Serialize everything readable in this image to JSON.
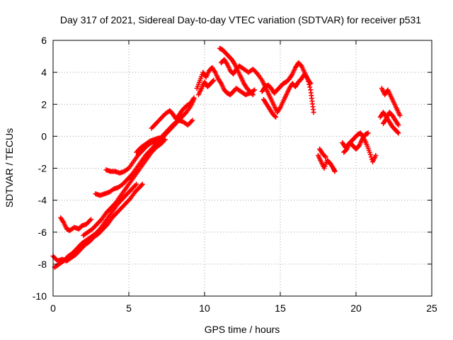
{
  "chart_data": {
    "type": "scatter",
    "title": "Day 317 of 2021, Sidereal Day-to-day VTEC variation (SDTVAR) for receiver p531",
    "xlabel": "GPS time / hours",
    "ylabel": "SDTVAR / TECUs",
    "xlim": [
      0,
      25
    ],
    "ylim": [
      -10,
      6
    ],
    "xticks": [
      "0",
      "5",
      "10",
      "15",
      "20",
      "25"
    ],
    "yticks": [
      "-10",
      "-8",
      "-6",
      "-4",
      "-2",
      "0",
      "2",
      "4",
      "6"
    ],
    "grid": true,
    "marker": "+",
    "color": "#ff0000",
    "series": [
      {
        "points": [
          [
            0.0,
            -7.5
          ],
          [
            0.3,
            -7.8
          ],
          [
            0.6,
            -7.7
          ],
          [
            0.9,
            -7.8
          ],
          [
            1.2,
            -7.6
          ],
          [
            1.5,
            -7.4
          ],
          [
            1.8,
            -7.1
          ],
          [
            2.1,
            -6.8
          ],
          [
            2.4,
            -6.6
          ],
          [
            2.7,
            -6.3
          ],
          [
            3.0,
            -6.1
          ],
          [
            3.3,
            -5.8
          ],
          [
            3.6,
            -5.5
          ],
          [
            3.9,
            -5.1
          ],
          [
            4.2,
            -4.8
          ],
          [
            4.5,
            -4.5
          ],
          [
            4.8,
            -4.2
          ],
          [
            5.1,
            -3.9
          ],
          [
            5.4,
            -3.5
          ],
          [
            5.7,
            -3.2
          ],
          [
            5.9,
            -3.0
          ]
        ]
      },
      {
        "points": [
          [
            0.1,
            -8.2
          ],
          [
            0.4,
            -8.0
          ],
          [
            0.7,
            -7.8
          ],
          [
            1.0,
            -7.5
          ],
          [
            1.3,
            -7.3
          ],
          [
            1.6,
            -7.0
          ],
          [
            1.9,
            -6.7
          ],
          [
            2.2,
            -6.5
          ],
          [
            2.5,
            -6.3
          ],
          [
            2.8,
            -6.1
          ],
          [
            3.1,
            -5.8
          ],
          [
            3.4,
            -5.4
          ],
          [
            3.7,
            -5.0
          ],
          [
            4.0,
            -4.6
          ],
          [
            4.3,
            -4.2
          ],
          [
            4.6,
            -3.9
          ],
          [
            4.9,
            -3.6
          ],
          [
            5.2,
            -3.3
          ],
          [
            5.5,
            -3.0
          ]
        ]
      },
      {
        "points": [
          [
            0.5,
            -5.1
          ],
          [
            0.7,
            -5.4
          ],
          [
            0.9,
            -5.8
          ],
          [
            1.1,
            -5.9
          ],
          [
            1.4,
            -5.7
          ],
          [
            1.7,
            -5.8
          ],
          [
            1.9,
            -5.6
          ],
          [
            2.2,
            -5.5
          ],
          [
            2.5,
            -5.2
          ]
        ]
      },
      {
        "points": [
          [
            2.0,
            -6.2
          ],
          [
            2.3,
            -6.0
          ],
          [
            2.6,
            -5.8
          ],
          [
            2.9,
            -5.5
          ],
          [
            3.2,
            -5.2
          ],
          [
            3.5,
            -4.8
          ],
          [
            3.8,
            -4.5
          ],
          [
            4.1,
            -4.2
          ],
          [
            4.4,
            -3.8
          ],
          [
            4.7,
            -3.4
          ],
          [
            5.0,
            -3.0
          ],
          [
            5.3,
            -2.6
          ],
          [
            5.6,
            -2.2
          ],
          [
            5.9,
            -1.8
          ],
          [
            6.2,
            -1.4
          ],
          [
            6.5,
            -1.0
          ],
          [
            6.8,
            -0.7
          ],
          [
            7.1,
            -0.5
          ],
          [
            7.4,
            -0.2
          ]
        ]
      },
      {
        "points": [
          [
            2.8,
            -3.6
          ],
          [
            3.1,
            -3.7
          ],
          [
            3.4,
            -3.6
          ],
          [
            3.7,
            -3.5
          ],
          [
            4.0,
            -3.3
          ],
          [
            4.3,
            -3.2
          ],
          [
            4.6,
            -3.0
          ],
          [
            4.9,
            -2.7
          ],
          [
            5.2,
            -2.4
          ],
          [
            5.5,
            -2.0
          ],
          [
            5.8,
            -1.6
          ],
          [
            6.1,
            -1.2
          ],
          [
            6.4,
            -0.9
          ],
          [
            6.7,
            -0.6
          ],
          [
            7.0,
            -0.3
          ],
          [
            7.3,
            0.0
          ],
          [
            7.6,
            0.3
          ],
          [
            7.9,
            0.6
          ],
          [
            8.2,
            0.9
          ],
          [
            8.5,
            1.2
          ],
          [
            8.8,
            1.5
          ],
          [
            9.1,
            1.9
          ],
          [
            9.3,
            2.3
          ]
        ]
      },
      {
        "points": [
          [
            3.5,
            -2.1
          ],
          [
            3.8,
            -2.2
          ],
          [
            4.1,
            -2.2
          ],
          [
            4.4,
            -2.3
          ],
          [
            4.7,
            -2.2
          ],
          [
            5.0,
            -2.0
          ],
          [
            5.3,
            -1.6
          ],
          [
            5.6,
            -1.2
          ],
          [
            5.9,
            -0.9
          ],
          [
            6.2,
            -0.6
          ],
          [
            6.5,
            -0.4
          ],
          [
            6.8,
            -0.3
          ],
          [
            7.1,
            -0.1
          ],
          [
            7.4,
            0.2
          ],
          [
            7.7,
            0.5
          ],
          [
            8.0,
            0.8
          ],
          [
            8.3,
            1.0
          ],
          [
            8.6,
            0.9
          ],
          [
            8.9,
            0.7
          ],
          [
            9.2,
            1.0
          ]
        ]
      },
      {
        "points": [
          [
            5.5,
            -1.0
          ],
          [
            5.8,
            -0.7
          ],
          [
            6.1,
            -0.5
          ],
          [
            6.4,
            -0.3
          ],
          [
            6.7,
            -0.2
          ],
          [
            7.0,
            -0.1
          ]
        ]
      },
      {
        "points": [
          [
            6.5,
            0.5
          ],
          [
            6.8,
            0.8
          ],
          [
            7.1,
            1.1
          ],
          [
            7.4,
            1.4
          ],
          [
            7.7,
            1.6
          ],
          [
            7.9,
            1.4
          ],
          [
            8.1,
            1.1
          ],
          [
            8.3,
            1.3
          ],
          [
            8.5,
            1.6
          ],
          [
            8.8,
            1.9
          ],
          [
            9.1,
            2.1
          ],
          [
            9.3,
            2.4
          ]
        ]
      },
      {
        "points": [
          [
            9.5,
            3.0
          ],
          [
            9.7,
            3.5
          ],
          [
            9.9,
            4.0
          ],
          [
            10.1,
            3.7
          ],
          [
            10.3,
            4.1
          ],
          [
            10.5,
            4.3
          ],
          [
            10.7,
            4.0
          ],
          [
            10.9,
            3.6
          ],
          [
            11.1,
            3.3
          ],
          [
            11.3,
            2.9
          ],
          [
            11.5,
            2.7
          ],
          [
            11.7,
            2.6
          ],
          [
            11.9,
            2.8
          ],
          [
            12.1,
            3.0
          ],
          [
            12.4,
            2.8
          ],
          [
            12.7,
            2.6
          ],
          [
            13.0,
            2.7
          ],
          [
            13.3,
            2.9
          ]
        ]
      },
      {
        "points": [
          [
            9.6,
            2.6
          ],
          [
            9.8,
            3.0
          ],
          [
            10.0,
            3.4
          ],
          [
            10.2,
            3.1
          ],
          [
            10.4,
            3.3
          ],
          [
            10.6,
            3.5
          ]
        ]
      },
      {
        "points": [
          [
            11.0,
            5.5
          ],
          [
            11.2,
            5.4
          ],
          [
            11.4,
            5.2
          ],
          [
            11.6,
            5.0
          ],
          [
            11.8,
            4.8
          ],
          [
            12.0,
            4.5
          ],
          [
            12.2,
            4.1
          ],
          [
            12.4,
            3.7
          ],
          [
            12.6,
            3.3
          ],
          [
            12.8,
            3.0
          ],
          [
            13.0,
            2.8
          ],
          [
            13.2,
            2.6
          ]
        ]
      },
      {
        "points": [
          [
            11.1,
            4.6
          ],
          [
            11.3,
            4.8
          ],
          [
            11.5,
            4.5
          ],
          [
            11.7,
            4.1
          ],
          [
            11.9,
            3.9
          ],
          [
            12.1,
            4.2
          ],
          [
            12.3,
            4.4
          ],
          [
            12.6,
            4.2
          ],
          [
            12.9,
            4.0
          ],
          [
            13.2,
            4.2
          ],
          [
            13.5,
            3.9
          ],
          [
            13.8,
            3.5
          ],
          [
            14.0,
            3.1
          ],
          [
            14.2,
            2.7
          ],
          [
            14.4,
            2.3
          ],
          [
            14.6,
            1.9
          ],
          [
            14.8,
            1.5
          ],
          [
            15.0,
            1.8
          ],
          [
            15.2,
            2.2
          ],
          [
            15.4,
            2.6
          ],
          [
            15.6,
            3.0
          ],
          [
            15.8,
            3.3
          ],
          [
            16.0,
            3.1
          ],
          [
            16.2,
            3.4
          ],
          [
            16.4,
            3.6
          ],
          [
            16.6,
            3.9
          ],
          [
            16.8,
            3.6
          ],
          [
            17.0,
            2.9
          ],
          [
            17.1,
            2.2
          ],
          [
            17.2,
            1.5
          ]
        ]
      },
      {
        "points": [
          [
            13.8,
            2.8
          ],
          [
            14.0,
            3.1
          ],
          [
            14.2,
            3.2
          ],
          [
            14.4,
            3.0
          ],
          [
            14.6,
            2.7
          ],
          [
            14.8,
            2.9
          ],
          [
            15.0,
            3.1
          ],
          [
            15.2,
            3.3
          ],
          [
            15.4,
            3.4
          ],
          [
            15.6,
            3.6
          ],
          [
            15.8,
            3.9
          ],
          [
            16.0,
            4.3
          ],
          [
            16.2,
            4.6
          ],
          [
            16.4,
            4.4
          ],
          [
            16.6,
            4.0
          ],
          [
            16.8,
            3.6
          ],
          [
            17.0,
            3.3
          ]
        ]
      },
      {
        "points": [
          [
            13.9,
            2.3
          ],
          [
            14.1,
            2.0
          ],
          [
            14.3,
            1.7
          ],
          [
            14.5,
            1.4
          ],
          [
            14.7,
            1.2
          ]
        ]
      },
      {
        "points": [
          [
            17.5,
            -1.2
          ],
          [
            17.7,
            -1.6
          ],
          [
            17.9,
            -2.0
          ],
          [
            18.1,
            -1.5
          ],
          [
            18.3,
            -1.7
          ],
          [
            18.5,
            -2.0
          ],
          [
            18.6,
            -2.2
          ]
        ]
      },
      {
        "points": [
          [
            17.6,
            -0.8
          ],
          [
            17.8,
            -1.1
          ],
          [
            18.0,
            -1.3
          ]
        ]
      },
      {
        "points": [
          [
            19.1,
            -0.4
          ],
          [
            19.3,
            -0.7
          ],
          [
            19.5,
            -0.5
          ],
          [
            19.7,
            -0.3
          ],
          [
            19.9,
            -0.1
          ],
          [
            20.1,
            0.1
          ],
          [
            20.3,
            0.2
          ],
          [
            20.5,
            -0.1
          ],
          [
            20.7,
            -0.5
          ],
          [
            20.9,
            -1.0
          ],
          [
            21.1,
            -1.6
          ],
          [
            21.3,
            -1.2
          ]
        ]
      },
      {
        "points": [
          [
            19.2,
            -1.0
          ],
          [
            19.4,
            -0.8
          ],
          [
            19.6,
            -0.4
          ],
          [
            19.8,
            -0.6
          ],
          [
            20.0,
            -0.8
          ],
          [
            20.2,
            -0.6
          ],
          [
            20.4,
            -0.2
          ],
          [
            20.6,
            0.1
          ],
          [
            20.8,
            0.2
          ]
        ]
      },
      {
        "points": [
          [
            21.6,
            1.2
          ],
          [
            21.8,
            1.5
          ],
          [
            22.0,
            1.2
          ],
          [
            22.2,
            0.9
          ],
          [
            22.4,
            0.6
          ],
          [
            22.6,
            0.4
          ],
          [
            22.8,
            0.2
          ]
        ]
      },
      {
        "points": [
          [
            21.7,
            3.0
          ],
          [
            21.9,
            2.6
          ],
          [
            22.1,
            2.9
          ],
          [
            22.3,
            2.5
          ],
          [
            22.5,
            2.1
          ],
          [
            22.7,
            1.7
          ],
          [
            22.9,
            1.3
          ]
        ]
      },
      {
        "points": [
          [
            21.8,
            0.8
          ],
          [
            22.0,
            1.1
          ],
          [
            22.2,
            1.5
          ],
          [
            22.4,
            1.3
          ],
          [
            22.6,
            1.0
          ],
          [
            22.8,
            0.7
          ]
        ]
      }
    ]
  }
}
